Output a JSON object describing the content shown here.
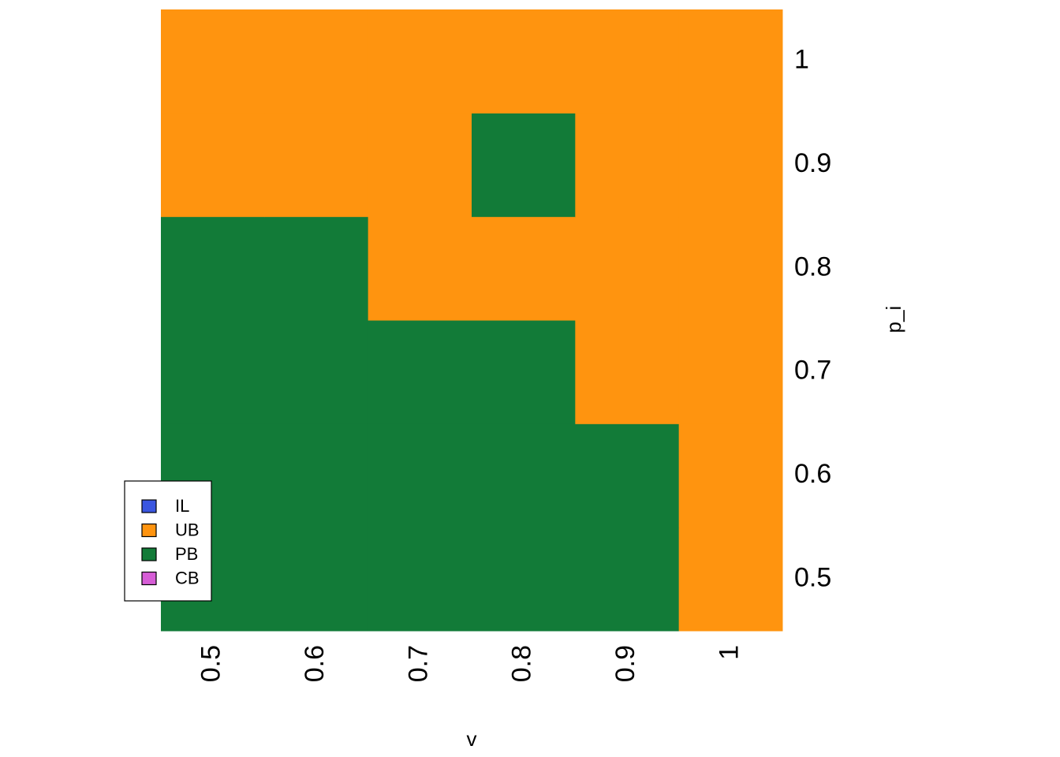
{
  "chart_data": {
    "type": "heatmap",
    "x_label": "v",
    "y_label": "p_i",
    "x": [
      0.5,
      0.6,
      0.7,
      0.8,
      0.9,
      1
    ],
    "y": [
      0.5,
      0.6,
      0.7,
      0.8,
      0.9,
      1
    ],
    "z": [
      [
        "PB",
        "PB",
        "PB",
        "PB",
        "PB",
        "UB"
      ],
      [
        "PB",
        "PB",
        "PB",
        "PB",
        "PB",
        "UB"
      ],
      [
        "PB",
        "PB",
        "PB",
        "PB",
        "UB",
        "UB"
      ],
      [
        "PB",
        "PB",
        "UB",
        "UB",
        "UB",
        "UB"
      ],
      [
        "UB",
        "UB",
        "UB",
        "PB",
        "UB",
        "UB"
      ],
      [
        "UB",
        "UB",
        "UB",
        "UB",
        "UB",
        "UB"
      ]
    ],
    "series": [
      {
        "name": "IL",
        "color": "#3a56e0"
      },
      {
        "name": "UB",
        "color": "#ff940f"
      },
      {
        "name": "PB",
        "color": "#127b38"
      },
      {
        "name": "CB",
        "color": "#d65dd6"
      }
    ],
    "xlim": [
      0.45,
      1.05
    ],
    "ylim": [
      0.45,
      1.05
    ],
    "xticks": [
      0.5,
      0.6,
      0.7,
      0.8,
      0.9,
      1
    ],
    "yticks": [
      0.5,
      0.6,
      0.7,
      0.8,
      0.9,
      1
    ],
    "legend": "bottom-left"
  }
}
